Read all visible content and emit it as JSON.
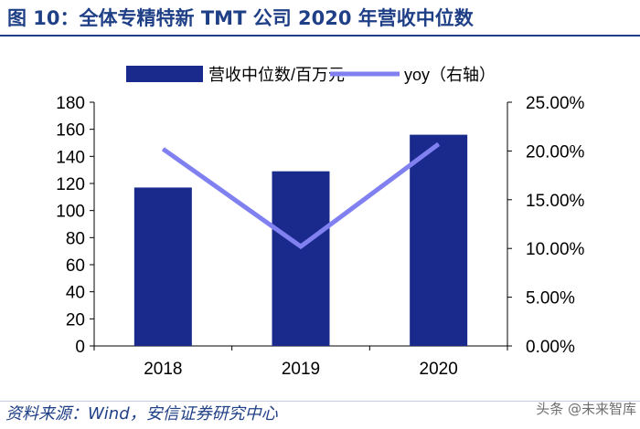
{
  "title": "图 10：全体专精特新 TMT 公司 2020 年营收中位数",
  "source": "资料来源：Wind，安信证券研究中心",
  "watermark": "头条 @未来智库",
  "colors": {
    "bar": "#1a2a8c",
    "line": "#8080f0",
    "title": "#1f3f86"
  },
  "chart_data": {
    "type": "bar",
    "categories": [
      "2018",
      "2019",
      "2020"
    ],
    "series": [
      {
        "name": "营收中位数/百万元",
        "type": "bar",
        "axis": "left",
        "values": [
          117,
          129,
          156
        ]
      },
      {
        "name": "yoy（右轴）",
        "type": "line",
        "axis": "right",
        "values": [
          0.202,
          0.102,
          0.207
        ]
      }
    ],
    "y_left": {
      "min": 0,
      "max": 180,
      "step": 20,
      "ticks": [
        "0",
        "20",
        "40",
        "60",
        "80",
        "100",
        "120",
        "140",
        "160",
        "180"
      ]
    },
    "y_right": {
      "min": 0,
      "max": 0.25,
      "step": 0.05,
      "ticks": [
        "0.00%",
        "5.00%",
        "10.00%",
        "15.00%",
        "20.00%",
        "25.00%"
      ]
    },
    "legend_position": "top",
    "grid": false
  }
}
